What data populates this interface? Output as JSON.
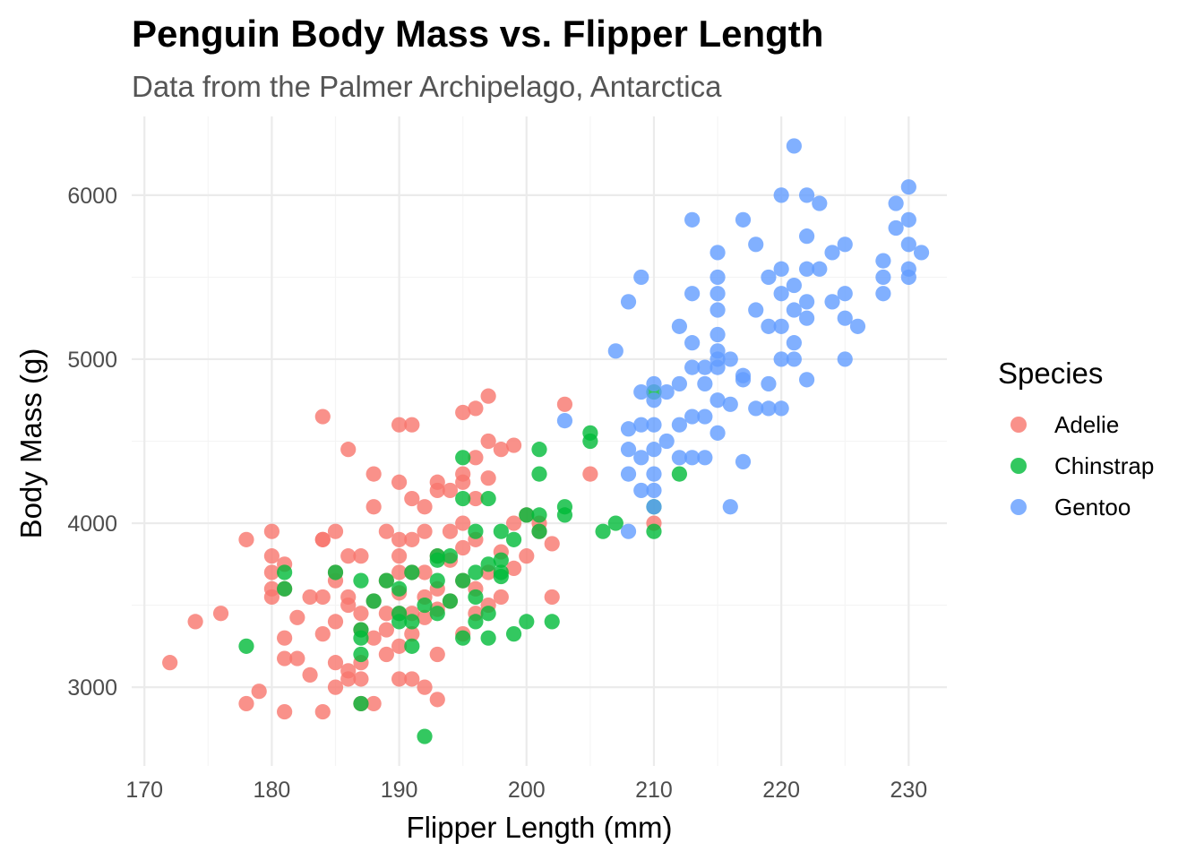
{
  "chart_data": {
    "type": "scatter",
    "title": "Penguin Body Mass vs. Flipper Length",
    "subtitle": "Data from the Palmer Archipelago, Antarctica",
    "xlabel": "Flipper Length (mm)",
    "ylabel": "Body Mass (g)",
    "xlim": [
      169,
      233
    ],
    "ylim": [
      2520,
      6480
    ],
    "xticks": [
      170,
      180,
      190,
      200,
      210,
      220,
      230
    ],
    "yticks": [
      3000,
      4000,
      5000,
      6000
    ],
    "grid": true,
    "legend": {
      "title": "Species",
      "position": "right"
    },
    "series": [
      {
        "name": "Adelie",
        "color": "#F8766D",
        "points": [
          [
            172,
            3150
          ],
          [
            174,
            3400
          ],
          [
            176,
            3450
          ],
          [
            178,
            3900
          ],
          [
            178,
            2900
          ],
          [
            179,
            2975
          ],
          [
            180,
            3950
          ],
          [
            180,
            3800
          ],
          [
            180,
            3700
          ],
          [
            180,
            3600
          ],
          [
            180,
            3550
          ],
          [
            181,
            3750
          ],
          [
            181,
            3600
          ],
          [
            181,
            3300
          ],
          [
            181,
            3175
          ],
          [
            181,
            2850
          ],
          [
            182,
            3425
          ],
          [
            182,
            3175
          ],
          [
            183,
            3550
          ],
          [
            183,
            3075
          ],
          [
            184,
            4650
          ],
          [
            184,
            3900
          ],
          [
            184,
            3900
          ],
          [
            184,
            3550
          ],
          [
            184,
            3325
          ],
          [
            184,
            2850
          ],
          [
            185,
            3950
          ],
          [
            185,
            3700
          ],
          [
            185,
            3650
          ],
          [
            185,
            3400
          ],
          [
            185,
            3150
          ],
          [
            185,
            3000
          ],
          [
            186,
            4450
          ],
          [
            186,
            3800
          ],
          [
            186,
            3550
          ],
          [
            186,
            3500
          ],
          [
            186,
            3100
          ],
          [
            186,
            3050
          ],
          [
            187,
            3800
          ],
          [
            187,
            3450
          ],
          [
            187,
            3350
          ],
          [
            187,
            3150
          ],
          [
            187,
            3050
          ],
          [
            187,
            2900
          ],
          [
            188,
            4300
          ],
          [
            188,
            4100
          ],
          [
            188,
            3525
          ],
          [
            188,
            3300
          ],
          [
            188,
            2900
          ],
          [
            189,
            3950
          ],
          [
            189,
            3650
          ],
          [
            189,
            3450
          ],
          [
            189,
            3350
          ],
          [
            189,
            3200
          ],
          [
            190,
            4600
          ],
          [
            190,
            4250
          ],
          [
            190,
            3900
          ],
          [
            190,
            3800
          ],
          [
            190,
            3700
          ],
          [
            190,
            3575
          ],
          [
            190,
            3450
          ],
          [
            190,
            3250
          ],
          [
            190,
            3050
          ],
          [
            191,
            4600
          ],
          [
            191,
            4150
          ],
          [
            191,
            3900
          ],
          [
            191,
            3700
          ],
          [
            191,
            3450
          ],
          [
            191,
            3325
          ],
          [
            191,
            3050
          ],
          [
            192,
            4100
          ],
          [
            192,
            3950
          ],
          [
            192,
            3700
          ],
          [
            192,
            3550
          ],
          [
            192,
            3425
          ],
          [
            192,
            3000
          ],
          [
            193,
            4250
          ],
          [
            193,
            4200
          ],
          [
            193,
            3800
          ],
          [
            193,
            3600
          ],
          [
            193,
            3475
          ],
          [
            193,
            3200
          ],
          [
            193,
            2925
          ],
          [
            194,
            4200
          ],
          [
            194,
            3950
          ],
          [
            194,
            3775
          ],
          [
            194,
            3525
          ],
          [
            195,
            4675
          ],
          [
            195,
            4300
          ],
          [
            195,
            4250
          ],
          [
            195,
            4000
          ],
          [
            195,
            3850
          ],
          [
            195,
            3650
          ],
          [
            195,
            3325
          ],
          [
            196,
            4700
          ],
          [
            196,
            4400
          ],
          [
            196,
            4150
          ],
          [
            196,
            3900
          ],
          [
            196,
            3600
          ],
          [
            196,
            3450
          ],
          [
            197,
            4775
          ],
          [
            197,
            4500
          ],
          [
            197,
            4275
          ],
          [
            197,
            3700
          ],
          [
            197,
            3500
          ],
          [
            198,
            4450
          ],
          [
            198,
            3825
          ],
          [
            198,
            3550
          ],
          [
            199,
            4475
          ],
          [
            199,
            4000
          ],
          [
            199,
            3725
          ],
          [
            200,
            4050
          ],
          [
            200,
            3800
          ],
          [
            201,
            4000
          ],
          [
            201,
            3950
          ],
          [
            202,
            3875
          ],
          [
            202,
            3550
          ],
          [
            203,
            4725
          ],
          [
            205,
            4300
          ],
          [
            210,
            4000
          ]
        ]
      },
      {
        "name": "Chinstrap",
        "color": "#00BA38",
        "points": [
          [
            178,
            3250
          ],
          [
            181,
            3700
          ],
          [
            181,
            3600
          ],
          [
            185,
            3700
          ],
          [
            187,
            3650
          ],
          [
            187,
            3350
          ],
          [
            187,
            3300
          ],
          [
            187,
            3200
          ],
          [
            187,
            2900
          ],
          [
            188,
            3525
          ],
          [
            189,
            3650
          ],
          [
            190,
            3600
          ],
          [
            190,
            3450
          ],
          [
            190,
            3400
          ],
          [
            191,
            3700
          ],
          [
            191,
            3400
          ],
          [
            191,
            3250
          ],
          [
            192,
            3500
          ],
          [
            192,
            2700
          ],
          [
            193,
            3800
          ],
          [
            193,
            3775
          ],
          [
            193,
            3650
          ],
          [
            193,
            3450
          ],
          [
            194,
            3800
          ],
          [
            194,
            3525
          ],
          [
            195,
            4400
          ],
          [
            195,
            4150
          ],
          [
            195,
            3650
          ],
          [
            195,
            3300
          ],
          [
            196,
            3950
          ],
          [
            196,
            3700
          ],
          [
            196,
            3550
          ],
          [
            196,
            3400
          ],
          [
            197,
            4150
          ],
          [
            197,
            3750
          ],
          [
            197,
            3450
          ],
          [
            197,
            3300
          ],
          [
            198,
            3950
          ],
          [
            198,
            3775
          ],
          [
            198,
            3700
          ],
          [
            198,
            3675
          ],
          [
            199,
            3900
          ],
          [
            199,
            3325
          ],
          [
            200,
            4050
          ],
          [
            200,
            3400
          ],
          [
            201,
            4450
          ],
          [
            201,
            4300
          ],
          [
            201,
            4050
          ],
          [
            201,
            3950
          ],
          [
            202,
            3400
          ],
          [
            203,
            4100
          ],
          [
            203,
            4050
          ],
          [
            205,
            4550
          ],
          [
            205,
            4500
          ],
          [
            206,
            3950
          ],
          [
            207,
            4000
          ],
          [
            210,
            4800
          ],
          [
            210,
            4100
          ],
          [
            210,
            3950
          ],
          [
            212,
            4300
          ]
        ]
      },
      {
        "name": "Gentoo",
        "color": "#619CFF",
        "points": [
          [
            203,
            4625
          ],
          [
            207,
            5050
          ],
          [
            208,
            5350
          ],
          [
            208,
            4575
          ],
          [
            208,
            4450
          ],
          [
            208,
            4300
          ],
          [
            208,
            3950
          ],
          [
            209,
            5500
          ],
          [
            209,
            4800
          ],
          [
            209,
            4600
          ],
          [
            209,
            4400
          ],
          [
            209,
            4200
          ],
          [
            210,
            4850
          ],
          [
            210,
            4750
          ],
          [
            210,
            4600
          ],
          [
            210,
            4450
          ],
          [
            210,
            4300
          ],
          [
            210,
            4200
          ],
          [
            210,
            4100
          ],
          [
            211,
            4800
          ],
          [
            211,
            4500
          ],
          [
            212,
            5200
          ],
          [
            212,
            4850
          ],
          [
            212,
            4600
          ],
          [
            212,
            4400
          ],
          [
            213,
            5850
          ],
          [
            213,
            5400
          ],
          [
            213,
            5100
          ],
          [
            213,
            4950
          ],
          [
            213,
            4650
          ],
          [
            213,
            4400
          ],
          [
            214,
            4950
          ],
          [
            214,
            4850
          ],
          [
            214,
            4650
          ],
          [
            214,
            4400
          ],
          [
            215,
            5650
          ],
          [
            215,
            5500
          ],
          [
            215,
            5400
          ],
          [
            215,
            5300
          ],
          [
            215,
            5150
          ],
          [
            215,
            5050
          ],
          [
            215,
            5000
          ],
          [
            215,
            4950
          ],
          [
            215,
            4750
          ],
          [
            215,
            4550
          ],
          [
            216,
            5000
          ],
          [
            216,
            4725
          ],
          [
            216,
            4100
          ],
          [
            217,
            5850
          ],
          [
            217,
            4900
          ],
          [
            217,
            4875
          ],
          [
            217,
            4375
          ],
          [
            218,
            5700
          ],
          [
            218,
            5300
          ],
          [
            218,
            4700
          ],
          [
            219,
            5500
          ],
          [
            219,
            5200
          ],
          [
            219,
            4850
          ],
          [
            219,
            4700
          ],
          [
            220,
            6000
          ],
          [
            220,
            5550
          ],
          [
            220,
            5400
          ],
          [
            220,
            5200
          ],
          [
            220,
            5000
          ],
          [
            220,
            4700
          ],
          [
            221,
            6300
          ],
          [
            221,
            5450
          ],
          [
            221,
            5300
          ],
          [
            221,
            5100
          ],
          [
            221,
            5000
          ],
          [
            222,
            6000
          ],
          [
            222,
            5750
          ],
          [
            222,
            5550
          ],
          [
            222,
            5350
          ],
          [
            222,
            5250
          ],
          [
            222,
            4875
          ],
          [
            223,
            5950
          ],
          [
            223,
            5550
          ],
          [
            224,
            5650
          ],
          [
            224,
            5350
          ],
          [
            225,
            5700
          ],
          [
            225,
            5400
          ],
          [
            225,
            5250
          ],
          [
            225,
            5000
          ],
          [
            226,
            5200
          ],
          [
            228,
            5600
          ],
          [
            228,
            5500
          ],
          [
            228,
            5400
          ],
          [
            229,
            5950
          ],
          [
            229,
            5800
          ],
          [
            230,
            6050
          ],
          [
            230,
            5850
          ],
          [
            230,
            5700
          ],
          [
            230,
            5550
          ],
          [
            230,
            5500
          ],
          [
            231,
            5650
          ]
        ]
      }
    ]
  }
}
